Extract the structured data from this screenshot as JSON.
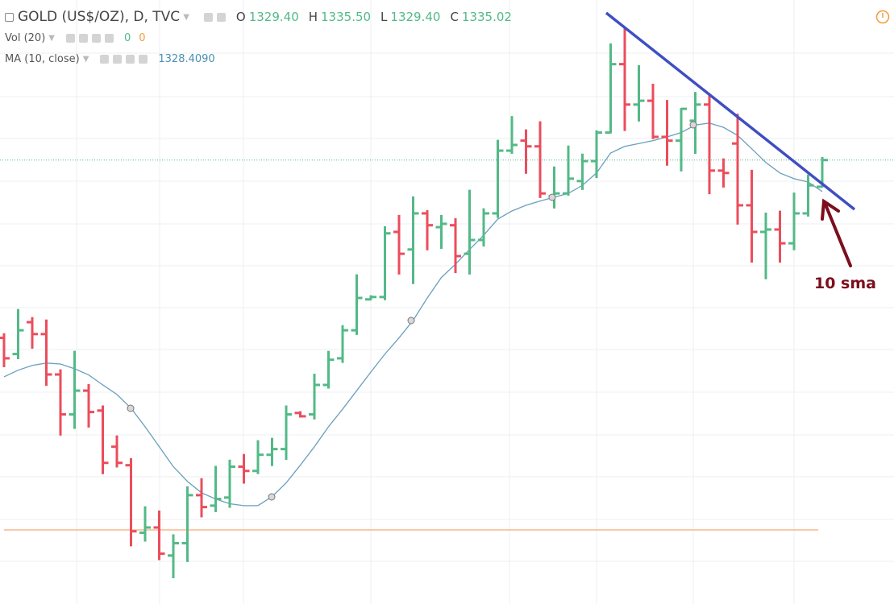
{
  "chart_data": {
    "type": "ohlc",
    "title": "GOLD (US$/OZ), D, TVC",
    "legend": {
      "o_label": "O",
      "o_value": "1329.40",
      "h_label": "H",
      "h_value": "1335.50",
      "l_label": "L",
      "l_value": "1329.40",
      "c_label": "C",
      "c_value": "1335.02",
      "vol_name": "Vol (20)",
      "vol_value_1": "0",
      "vol_value_2": "0",
      "ma_name": "MA (10, close)",
      "ma_value": "1328.4090"
    },
    "annotation": "10 sma",
    "categories": [
      null,
      null,
      null,
      null,
      null,
      null,
      null,
      null,
      null,
      null,
      null,
      null,
      null,
      null,
      null,
      null,
      null,
      null,
      null,
      null,
      null,
      null,
      null,
      null,
      null,
      null,
      null,
      null,
      null,
      null,
      null,
      null,
      null,
      null,
      null,
      null,
      null,
      null,
      null,
      null,
      null,
      null,
      null,
      null,
      null,
      null,
      null,
      null,
      null,
      null,
      null,
      null,
      null,
      null,
      null,
      null,
      null,
      null,
      null
    ],
    "open": [
      1297.6,
      1294.2,
      1300.9,
      1298.4,
      1289.9,
      1281.5,
      1286.5,
      1282.3,
      1274.7,
      1270.8,
      1256.6,
      1257.7,
      1251.8,
      1254.4,
      1264.5,
      1262.3,
      1264.0,
      1270.5,
      1269.6,
      1273.0,
      1274.2,
      1281.8,
      1281.5,
      1287.7,
      1293.3,
      1299.2,
      1305.7,
      1306.2,
      1319.9,
      1316.2,
      1323.8,
      1320.9,
      1321.3,
      1315.3,
      1318.2,
      1323.8,
      1337.0,
      1339.1,
      1337.9,
      1327.4,
      1328.0,
      1330.6,
      1334.8,
      1340.8,
      1355.2,
      1346.7,
      1347.5,
      1339.9,
      1339.1,
      1343.3,
      1346.7,
      1332.8,
      1338.5,
      1325.5,
      1319.9,
      1320.4,
      1317.5,
      1323.8,
      1329.4
    ],
    "high": [
      1298.4,
      1303.5,
      1301.8,
      1301.3,
      1290.8,
      1294.7,
      1287.7,
      1283.2,
      1276.9,
      1272.1,
      1262.0,
      1261.1,
      1256.1,
      1266.2,
      1267.9,
      1270.5,
      1271.8,
      1273.0,
      1275.9,
      1276.4,
      1283.2,
      1282.0,
      1289.9,
      1294.7,
      1300.1,
      1310.8,
      1306.4,
      1320.9,
      1323.3,
      1327.2,
      1324.3,
      1323.3,
      1322.6,
      1328.6,
      1324.7,
      1339.1,
      1344.1,
      1341.3,
      1343.0,
      1333.5,
      1337.9,
      1336.2,
      1341.1,
      1359.4,
      1362.8,
      1354.8,
      1350.9,
      1347.5,
      1345.8,
      1349.2,
      1348.7,
      1335.2,
      1344.6,
      1332.8,
      1323.8,
      1324.2,
      1328.0,
      1331.8,
      1335.5
    ],
    "low": [
      1291.6,
      1293.3,
      1295.5,
      1287.7,
      1277.2,
      1278.6,
      1278.9,
      1269.1,
      1270.5,
      1253.9,
      1254.9,
      1251.0,
      1247.2,
      1250.6,
      1260.0,
      1261.1,
      1262.0,
      1267.1,
      1269.1,
      1270.8,
      1272.1,
      1281.0,
      1280.6,
      1287.1,
      1292.5,
      1298.4,
      1305.7,
      1305.7,
      1311.1,
      1309.1,
      1316.2,
      1316.5,
      1311.4,
      1311.1,
      1317.0,
      1323.0,
      1336.5,
      1332.3,
      1327.2,
      1325.0,
      1327.7,
      1328.9,
      1331.4,
      1340.8,
      1341.3,
      1343.3,
      1339.6,
      1334.0,
      1332.8,
      1336.5,
      1328.0,
      1329.4,
      1321.6,
      1313.6,
      1310.1,
      1313.6,
      1316.2,
      1323.3,
      1329.4
    ],
    "close": [
      1293.3,
      1299.2,
      1298.4,
      1289.9,
      1281.5,
      1286.5,
      1282.0,
      1271.3,
      1271.3,
      1256.9,
      1257.7,
      1252.2,
      1254.4,
      1264.5,
      1262.0,
      1263.7,
      1270.5,
      1269.6,
      1273.0,
      1274.2,
      1281.5,
      1281.1,
      1287.7,
      1293.0,
      1299.2,
      1306.0,
      1306.2,
      1319.6,
      1315.3,
      1323.8,
      1321.3,
      1321.6,
      1314.8,
      1318.2,
      1323.8,
      1337.0,
      1338.2,
      1337.9,
      1328.0,
      1328.0,
      1331.1,
      1334.8,
      1340.8,
      1355.2,
      1346.7,
      1347.5,
      1339.9,
      1339.1,
      1345.8,
      1346.7,
      1332.8,
      1332.3,
      1325.5,
      1319.9,
      1320.4,
      1317.5,
      1323.8,
      1329.7,
      1335.02
    ],
    "ma": {
      "name": "MA (10, close)",
      "color": "#6a9fbd",
      "values": [
        1289.4,
        1290.8,
        1291.8,
        1292.3,
        1292.1,
        1291.1,
        1289.8,
        1287.7,
        1285.7,
        1282.8,
        1278.9,
        1274.7,
        1270.5,
        1267.4,
        1265.0,
        1263.7,
        1262.7,
        1262.3,
        1262.3,
        1264.2,
        1267.1,
        1270.8,
        1274.7,
        1278.9,
        1282.6,
        1286.5,
        1290.4,
        1294.2,
        1297.6,
        1301.3,
        1306.0,
        1310.3,
        1313.1,
        1316.2,
        1319.2,
        1322.6,
        1324.3,
        1325.5,
        1326.4,
        1327.2,
        1328.0,
        1329.7,
        1332.3,
        1336.5,
        1337.9,
        1338.5,
        1339.1,
        1339.9,
        1340.8,
        1342.4,
        1342.8,
        1341.9,
        1340.2,
        1337.4,
        1334.5,
        1332.3,
        1331.1,
        1330.4,
        1328.4
      ]
    },
    "up_color": "#53b987",
    "down_color": "#eb4d5c",
    "ylim": [
      1241.6,
      1368.7
    ]
  }
}
